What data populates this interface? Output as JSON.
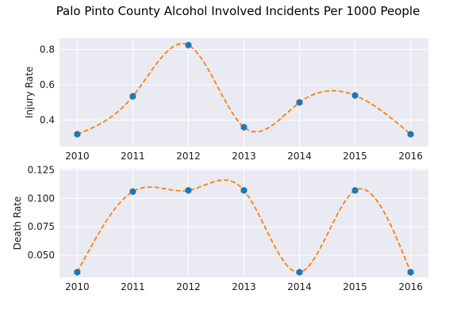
{
  "title": "Palo Pinto County Alcohol Involved Incidents Per 1000 People",
  "colors": {
    "plot_background": "#EAEAF2",
    "grid": "#FFFFFF",
    "marker": "#1F77B4",
    "curve": "#FF7F0E"
  },
  "chart_data": [
    {
      "type": "line",
      "x": [
        2010,
        2011,
        2012,
        2013,
        2014,
        2015,
        2016
      ],
      "values": [
        0.32,
        0.535,
        0.825,
        0.36,
        0.5,
        0.54,
        0.32
      ],
      "ylabel": "Injury Rate",
      "xlabel": "",
      "xlim": [
        2009.68,
        2016.32
      ],
      "ylim": [
        0.25,
        0.865
      ],
      "xticks": [
        "2010",
        "2011",
        "2012",
        "2013",
        "2014",
        "2015",
        "2016"
      ],
      "yticks": [
        {
          "value": 0.4,
          "label": "0.4"
        },
        {
          "value": 0.6,
          "label": "0.6"
        },
        {
          "value": 0.8,
          "label": "0.8"
        }
      ],
      "markers": "hexagon",
      "curve_style": "dashed smooth spline",
      "grid": true
    },
    {
      "type": "line",
      "x": [
        2010,
        2011,
        2012,
        2013,
        2014,
        2015,
        2016
      ],
      "values": [
        0.035,
        0.106,
        0.107,
        0.107,
        0.035,
        0.107,
        0.035
      ],
      "ylabel": "Death Rate",
      "xlabel": "",
      "xlim": [
        2009.68,
        2016.32
      ],
      "ylim": [
        0.0305,
        0.126
      ],
      "xticks": [
        "2010",
        "2011",
        "2012",
        "2013",
        "2014",
        "2015",
        "2016"
      ],
      "yticks": [
        {
          "value": 0.05,
          "label": "0.050"
        },
        {
          "value": 0.075,
          "label": "0.075"
        },
        {
          "value": 0.1,
          "label": "0.100"
        },
        {
          "value": 0.125,
          "label": "0.125"
        }
      ],
      "markers": "hexagon",
      "curve_style": "dashed smooth spline",
      "grid": true
    }
  ]
}
